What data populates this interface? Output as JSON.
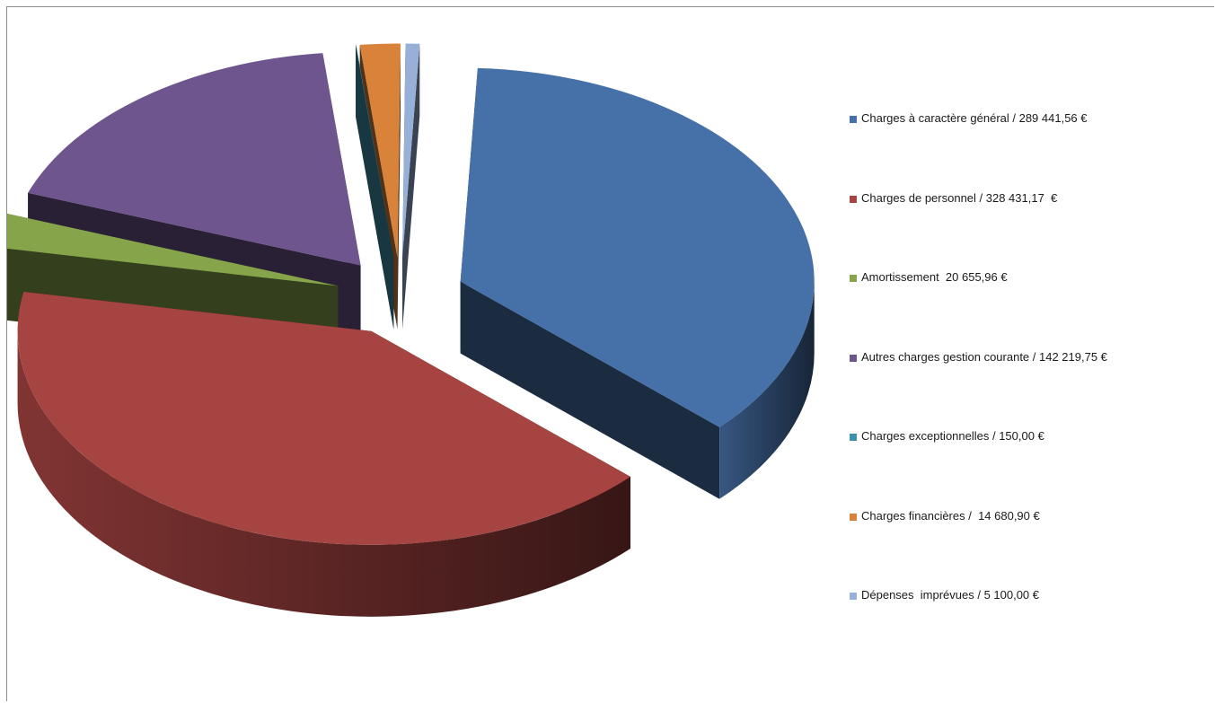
{
  "chart_data": {
    "type": "pie",
    "title": "",
    "style": "3d-exploded",
    "legend_position": "right",
    "currency": "€",
    "slices": [
      {
        "name": "Charges à caractère général",
        "value": 289441.56,
        "color": "#4670A8",
        "legend": "Charges à caractère général / 289 441,56 €"
      },
      {
        "name": "Charges de personnel",
        "value": 328431.17,
        "color": "#A64442",
        "legend": "Charges de personnel / 328 431,17  €"
      },
      {
        "name": "Amortissement",
        "value": 20655.96,
        "color": "#86A54B",
        "legend": "Amortissement  20 655,96 €"
      },
      {
        "name": "Autres charges gestion courante",
        "value": 142219.75,
        "color": "#6E558D",
        "legend": "Autres charges gestion courante / 142 219,75 €"
      },
      {
        "name": "Charges exceptionnelles",
        "value": 150.0,
        "color": "#3E91A8",
        "legend": "Charges exceptionnelles / 150,00 €"
      },
      {
        "name": "Charges financières",
        "value": 14680.9,
        "color": "#D8823A",
        "legend": "Charges financières /  14 680,90 €"
      },
      {
        "name": "Dépenses imprévues",
        "value": 5100.0,
        "color": "#97B0D8",
        "legend": "Dépenses  imprévues / 5 100,00 €"
      }
    ]
  }
}
